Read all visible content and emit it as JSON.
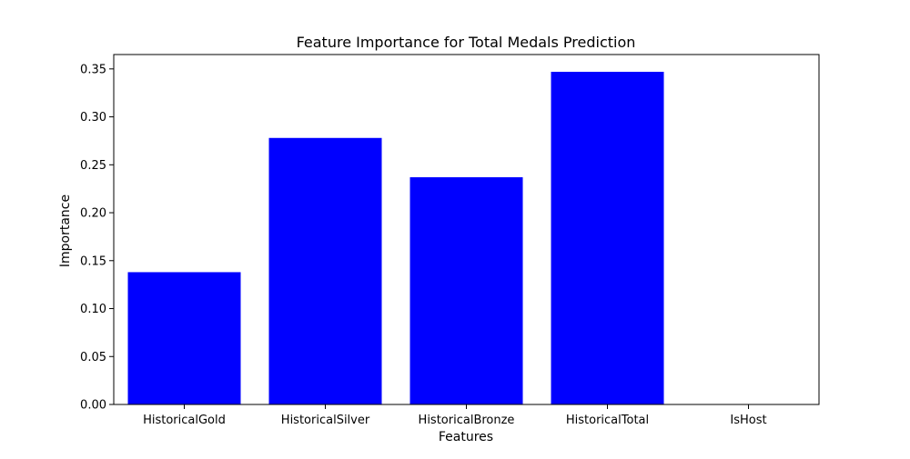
{
  "chart_data": {
    "type": "bar",
    "title": "Feature Importance for Total Medals Prediction",
    "xlabel": "Features",
    "ylabel": "Importance",
    "categories": [
      "HistoricalGold",
      "HistoricalSilver",
      "HistoricalBronze",
      "HistoricalTotal",
      "IsHost"
    ],
    "values": [
      0.138,
      0.278,
      0.237,
      0.347,
      0.0
    ],
    "ylim": [
      0,
      0.365
    ],
    "yticks": [
      "0.00",
      "0.05",
      "0.10",
      "0.15",
      "0.20",
      "0.25",
      "0.30",
      "0.35"
    ],
    "bar_color": "#0000ff",
    "grid": false,
    "legend": "none"
  }
}
